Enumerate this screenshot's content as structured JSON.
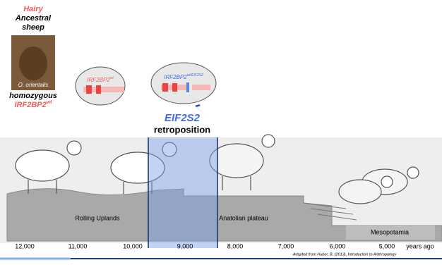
{
  "ancestor": {
    "line1": "Hairy",
    "line2": "Ancestral",
    "line3": "sheep",
    "photo_caption": "O. orientalis",
    "genotype": "homozygous",
    "gene": "IRF2BP2",
    "allele": "wt"
  },
  "bubbles": [
    {
      "gene": "IRF2BP2",
      "allele": "wt"
    },
    {
      "gene": "IRF2BP2",
      "allele": "wt/EIF2S2"
    }
  ],
  "event": {
    "gene": "EIF2S2",
    "label": "retroposition"
  },
  "regions": [
    "Rolling Uplands",
    "Anatolian plateau",
    "Mesopotamia"
  ],
  "timeline": {
    "labels": [
      "12,000",
      "11,000",
      "10,000",
      "9,000",
      "8,000",
      "7,000",
      "6,000",
      "5,000"
    ],
    "unit": "years ago"
  },
  "credit": "Adapted from Huber, B. (2013), Introduction to Anthropology"
}
